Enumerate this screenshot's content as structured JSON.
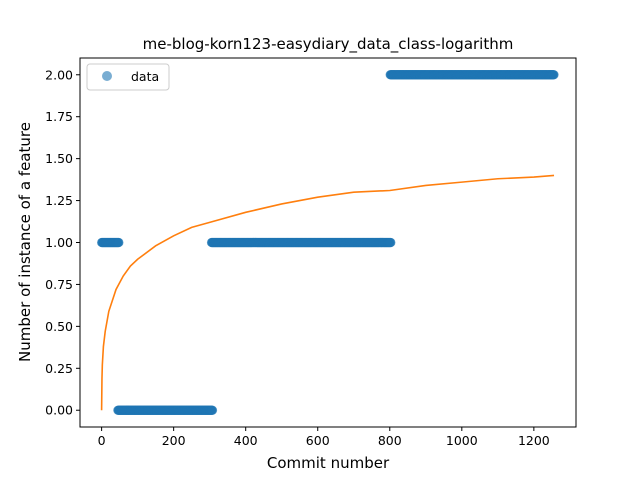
{
  "chart_data": {
    "type": "scatter",
    "title": "me-blog-korn123-easydiary_data_class-logarithm",
    "xlabel": "Commit number",
    "ylabel": "Number of instance of a feature",
    "xlim": [
      -60,
      1317
    ],
    "ylim": [
      -0.1,
      2.1
    ],
    "xticks": [
      0,
      200,
      400,
      600,
      800,
      1000,
      1200
    ],
    "yticks": [
      0.0,
      0.25,
      0.5,
      0.75,
      1.0,
      1.25,
      1.5,
      1.75,
      2.0
    ],
    "xtick_labels": [
      "0",
      "200",
      "400",
      "600",
      "800",
      "1000",
      "1200"
    ],
    "ytick_labels": [
      "0.00",
      "0.25",
      "0.50",
      "0.75",
      "1.00",
      "1.25",
      "1.50",
      "1.75",
      "2.00"
    ],
    "grid": false,
    "legend": {
      "position": "upper-left",
      "entries": [
        "data"
      ]
    },
    "series": [
      {
        "name": "data",
        "kind": "scatter",
        "color": "#1f77b4",
        "segments": [
          {
            "x_start": 0,
            "x_end": 48,
            "y": 1
          },
          {
            "x_start": 45,
            "x_end": 308,
            "y": 0
          },
          {
            "x_start": 305,
            "x_end": 803,
            "y": 1
          },
          {
            "x_start": 801,
            "x_end": 1256,
            "y": 2
          }
        ]
      },
      {
        "kind": "line",
        "color": "#ff7f0e",
        "fit": "logarithmic",
        "points": [
          [
            0,
            0.0
          ],
          [
            1,
            0.19
          ],
          [
            2,
            0.27
          ],
          [
            5,
            0.38
          ],
          [
            10,
            0.47
          ],
          [
            20,
            0.59
          ],
          [
            40,
            0.72
          ],
          [
            60,
            0.8
          ],
          [
            80,
            0.86
          ],
          [
            100,
            0.9
          ],
          [
            150,
            0.98
          ],
          [
            200,
            1.04
          ],
          [
            250,
            1.09
          ],
          [
            300,
            1.12
          ],
          [
            400,
            1.18
          ],
          [
            500,
            1.23
          ],
          [
            600,
            1.27
          ],
          [
            700,
            1.3
          ],
          [
            800,
            1.31
          ],
          [
            900,
            1.34
          ],
          [
            1000,
            1.36
          ],
          [
            1100,
            1.38
          ],
          [
            1200,
            1.39
          ],
          [
            1256,
            1.4
          ]
        ]
      }
    ]
  }
}
